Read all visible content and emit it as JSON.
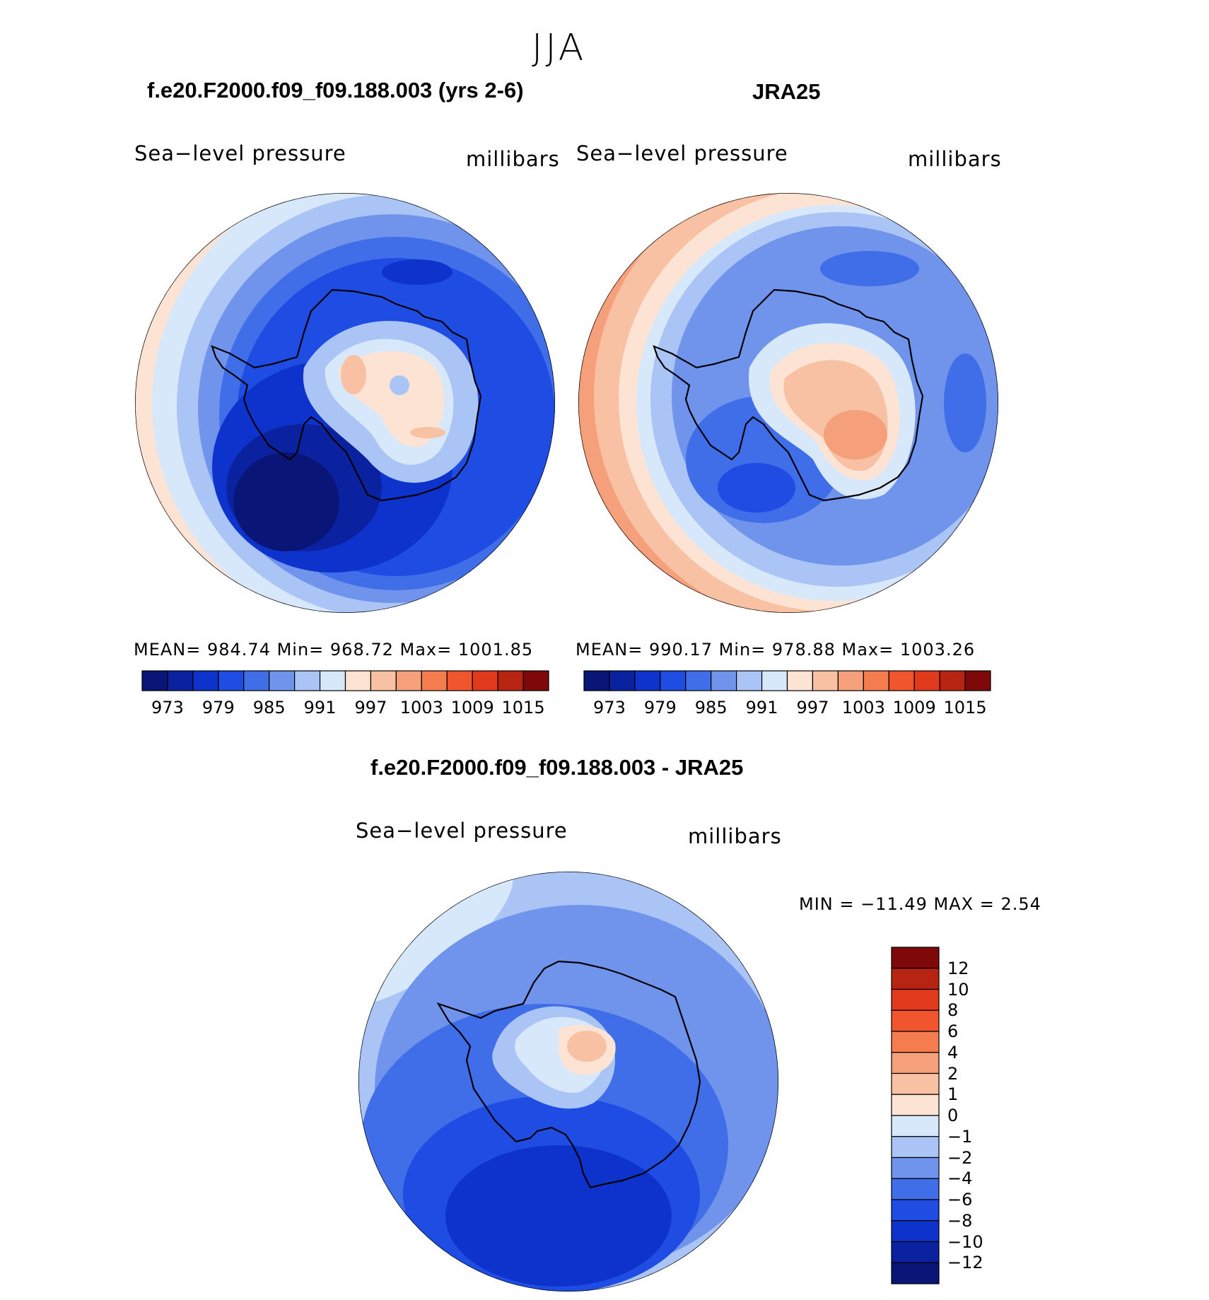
{
  "figure": {
    "title": "JJA",
    "panel_left": {
      "header": "f.e20.F2000.f09_f09.188.003 (yrs 2-6)",
      "label": "Sea−level pressure",
      "units": "millibars",
      "stats": "MEAN=  984.74    Min=  968.72    Max=  1001.85"
    },
    "panel_right": {
      "header": "JRA25",
      "label": "Sea−level pressure",
      "units": "millibars",
      "stats": "MEAN=  990.17    Min=  978.88    Max=  1003.26"
    },
    "panel_diff": {
      "header": "f.e20.F2000.f09_f09.188.003 - JRA25",
      "label": "Sea−level pressure",
      "units": "millibars",
      "stats": "MIN  =  −11.49  MAX  =      2.54"
    }
  },
  "colorbar_abs": {
    "colors": [
      "#0a1677",
      "#0b22a0",
      "#0e33cc",
      "#1f4de3",
      "#3f6ee8",
      "#7094ec",
      "#a9c4f5",
      "#d7e8fb",
      "#fce3d3",
      "#f9c1a3",
      "#f69f7b",
      "#f47c4f",
      "#f0552e",
      "#e0391c",
      "#b72512",
      "#7f0909"
    ],
    "tick_labels": [
      "973",
      "979",
      "985",
      "991",
      "997",
      "1003",
      "1009",
      "1015"
    ]
  },
  "colorbar_diff": {
    "colors": [
      "#7f0909",
      "#b72512",
      "#e0391c",
      "#f0552e",
      "#f47c4f",
      "#f69f7b",
      "#f9c1a3",
      "#fce3d3",
      "#d7e8fb",
      "#a9c4f5",
      "#7094ec",
      "#3f6ee8",
      "#1f4de3",
      "#0e33cc",
      "#0b22a0",
      "#0a1677"
    ],
    "tick_labels": [
      "12",
      "10",
      "8",
      "6",
      "4",
      "2",
      "1",
      "0",
      "−1",
      "−2",
      "−4",
      "−6",
      "−8",
      "−10",
      "−12"
    ]
  }
}
